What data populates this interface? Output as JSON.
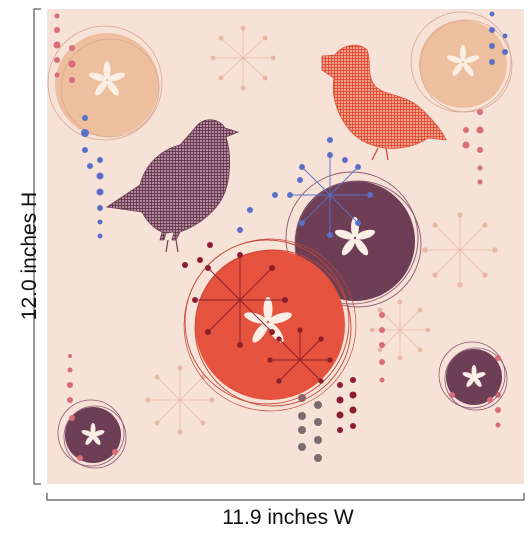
{
  "dimensions": {
    "height_label": "12.0 inches H",
    "width_label": "11.9 inches W"
  },
  "colors": {
    "background": "#f7e2d7",
    "orange_red": "#e5523d",
    "plum": "#6d3e55",
    "peach": "#eebf9f",
    "blue": "#5a70c6",
    "rose": "#d96d76",
    "dark_red": "#8b1d2c",
    "grey": "#7a6d70"
  },
  "artwork": {
    "subject": "two-plaid-birds-with-dandelion-circles",
    "icons": [
      "flower-icon",
      "bird-icon",
      "dandelion-icon",
      "dot-column-icon"
    ]
  }
}
